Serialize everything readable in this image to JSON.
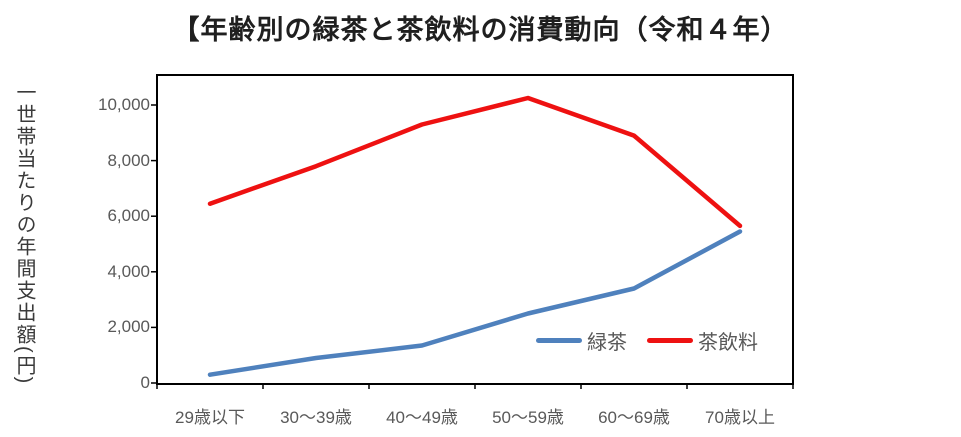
{
  "title": "【年齢別の緑茶と茶飲料の消費動向（令和４年）",
  "y_axis_label": "一世帯当たりの年間支出額(円)",
  "colors": {
    "green_tea_line": "#4f81bd",
    "tea_beverage_line": "#ee1111",
    "axis_text": "#595959",
    "title_text": "#1f1f1f",
    "plot_border": "#000000"
  },
  "chart_data": {
    "type": "line",
    "title": "【年齢別の緑茶と茶飲料の消費動向（令和４年）",
    "xlabel": "",
    "ylabel": "一世帯当たりの年間支出額(円)",
    "categories": [
      "29歳以下",
      "30～39歳",
      "40～49歳",
      "50～59歳",
      "60～69歳",
      "70歳以上"
    ],
    "series": [
      {
        "key": "green-tea",
        "name": "緑茶",
        "color": "#4f81bd",
        "values": [
          300,
          900,
          1350,
          2500,
          3400,
          5450
        ]
      },
      {
        "key": "tea-beverage",
        "name": "茶飲料",
        "color": "#ee1111",
        "values": [
          6450,
          7800,
          9300,
          10250,
          8900,
          5650
        ]
      }
    ],
    "ylim": [
      0,
      11100
    ],
    "yticks": [
      0,
      2000,
      4000,
      6000,
      8000,
      10000
    ],
    "ytick_labels": [
      "0",
      "2,000",
      "4,000",
      "6,000",
      "8,000",
      "10,000"
    ],
    "grid": false,
    "legend_position": "inside-bottom-right"
  },
  "legend": {
    "items": [
      {
        "key": "green-tea",
        "label": "緑茶",
        "color": "#4f81bd"
      },
      {
        "key": "tea-beverage",
        "label": "茶飲料",
        "color": "#ee1111"
      }
    ]
  }
}
